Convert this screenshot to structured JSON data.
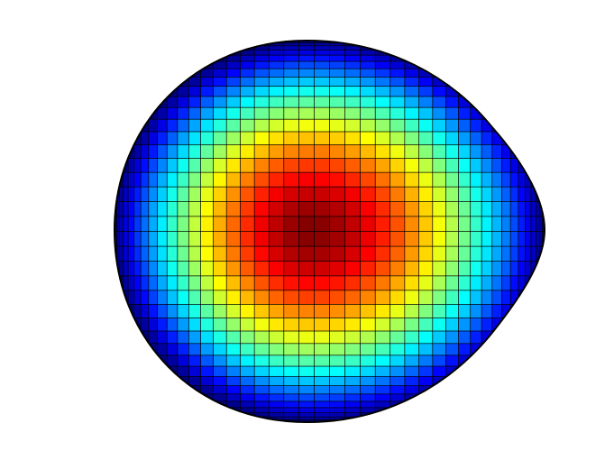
{
  "figure": {
    "type": "surface-mesh",
    "colormap": "jet",
    "colormap_stops": [
      "#00007f",
      "#0000ff",
      "#007fff",
      "#00ffff",
      "#7fff7f",
      "#ffff00",
      "#ff7f00",
      "#ff0000",
      "#7f0000"
    ],
    "mesh_line_color": "#000000",
    "background": "#ffffff",
    "axes_visible": false
  }
}
